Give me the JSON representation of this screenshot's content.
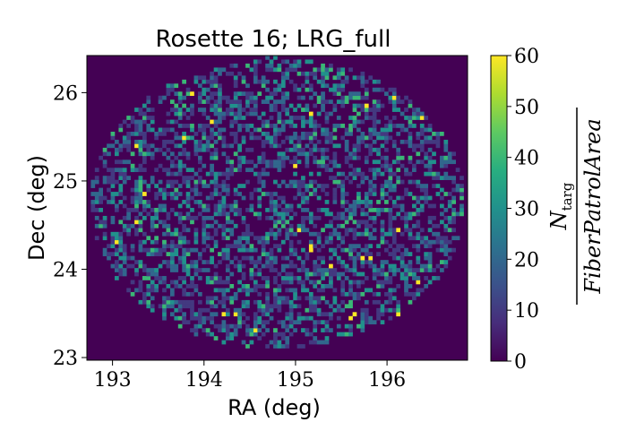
{
  "chart_data": {
    "type": "heatmap",
    "title": "Rosette 16; LRG_full",
    "xlabel": "RA (deg)",
    "ylabel": "Dec (deg)",
    "xlim": [
      192.72,
      196.88
    ],
    "ylim": [
      22.97,
      26.42
    ],
    "xticks": [
      193,
      194,
      195,
      196
    ],
    "yticks": [
      23,
      24,
      25,
      26
    ],
    "footprint": {
      "shape": "circle (rosette)",
      "center": [
        194.8,
        24.75
      ],
      "ra_radius_deg": 2.05,
      "dec_radius_deg": 1.65
    },
    "value_range": [
      0,
      60
    ],
    "typical_values": [
      0,
      10,
      20,
      30,
      40
    ],
    "colormap": "viridis",
    "colorbar": {
      "ticks": [
        0,
        10,
        20,
        30,
        40,
        50,
        60
      ],
      "label_numerator": "N",
      "label_numerator_sub": "targ",
      "label_denominator": "FiberPatrolArea"
    }
  }
}
